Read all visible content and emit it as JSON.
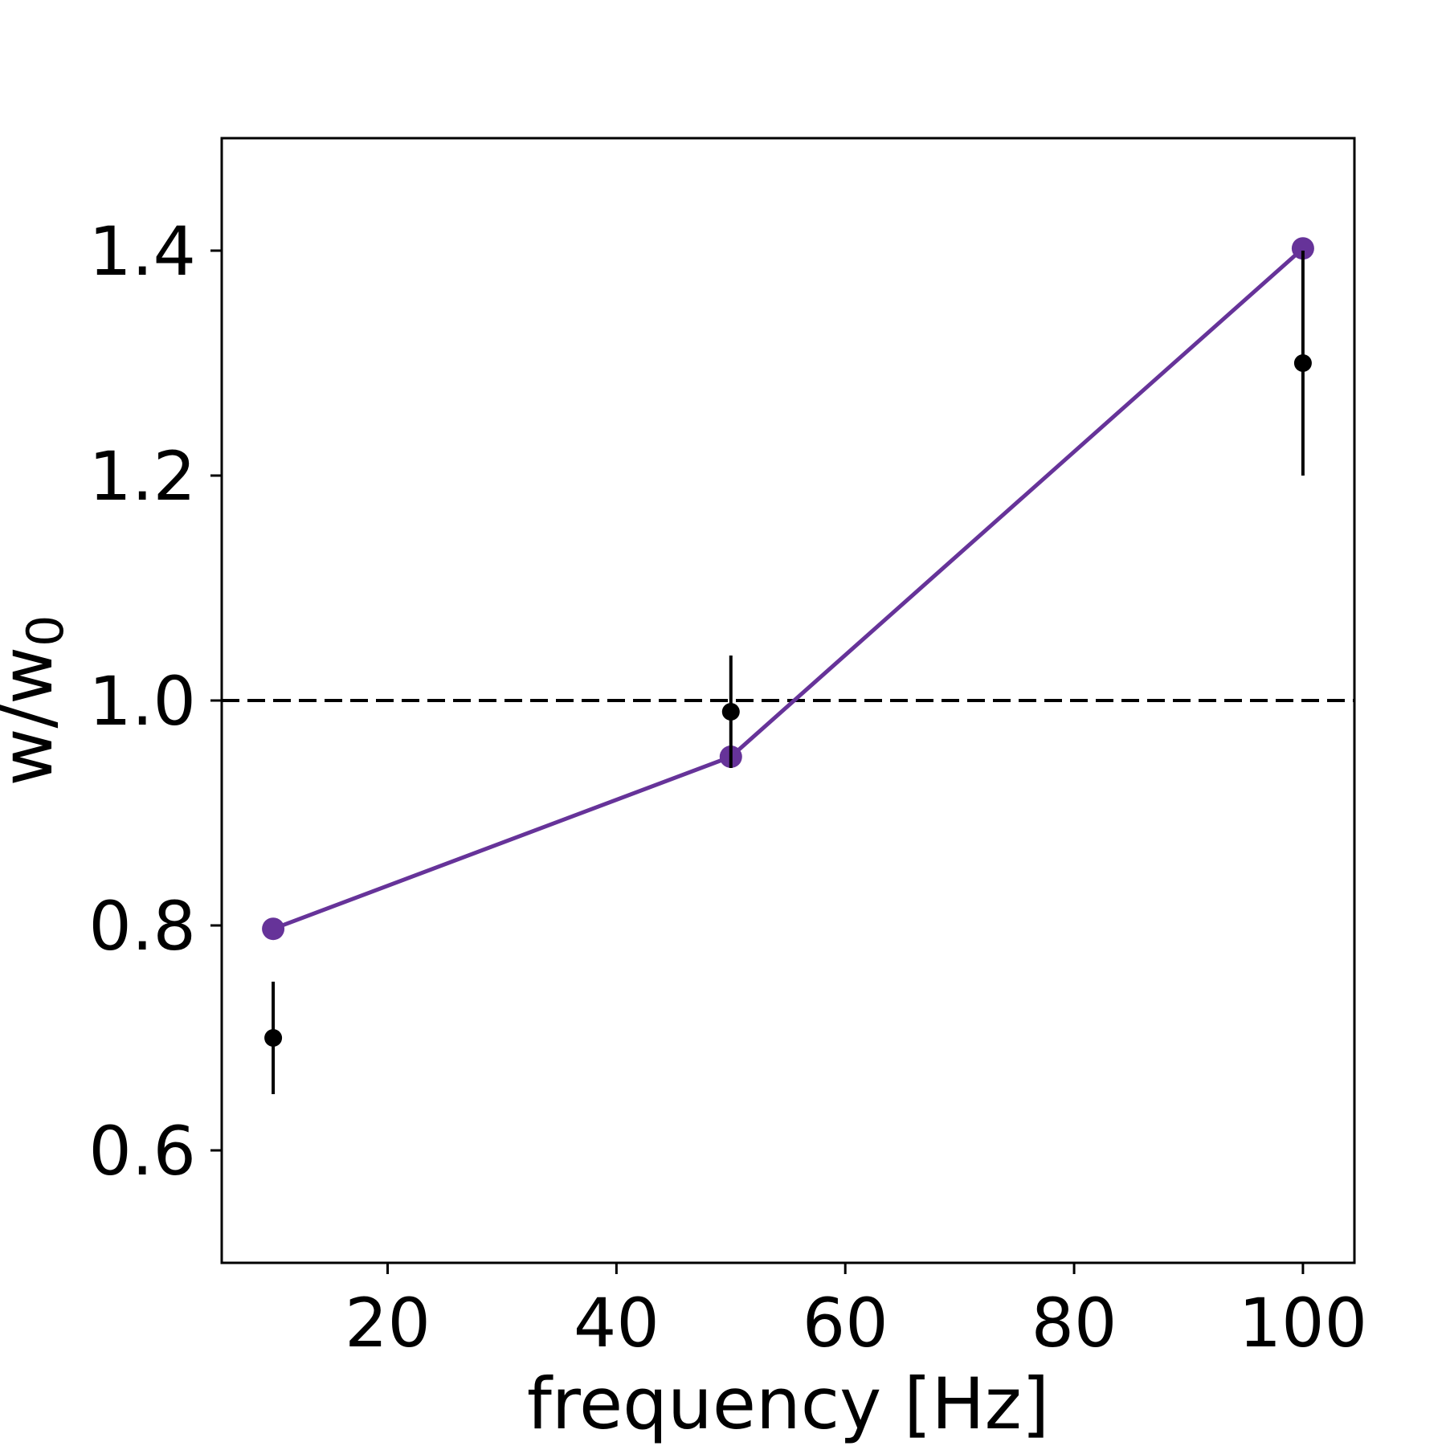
{
  "chart_data": {
    "type": "line",
    "xlabel": "frequency [Hz]",
    "ylabel_main": "w/w",
    "ylabel_sub": "0",
    "xlim": [
      5.5,
      104.5
    ],
    "ylim": [
      0.5,
      1.5
    ],
    "x_ticks": [
      20,
      40,
      60,
      80,
      100
    ],
    "x_tick_labels": [
      "20",
      "40",
      "60",
      "80",
      "100"
    ],
    "y_ticks": [
      0.6,
      0.8,
      1.0,
      1.2,
      1.4
    ],
    "y_tick_labels": [
      "0.6",
      "0.8",
      "1.0",
      "1.2",
      "1.4"
    ],
    "reference_line": {
      "y": 1.0,
      "style": "dashed",
      "color": "#000000"
    },
    "series": [
      {
        "kind": "line-with-markers",
        "color": "#663399",
        "x": [
          10,
          50,
          100
        ],
        "y": [
          0.797,
          0.95,
          1.402
        ]
      },
      {
        "kind": "errorbar",
        "color": "#000000",
        "x": [
          10,
          50,
          100
        ],
        "y": [
          0.7,
          0.99,
          1.3
        ],
        "yerr": [
          0.05,
          0.05,
          0.1
        ]
      }
    ]
  }
}
